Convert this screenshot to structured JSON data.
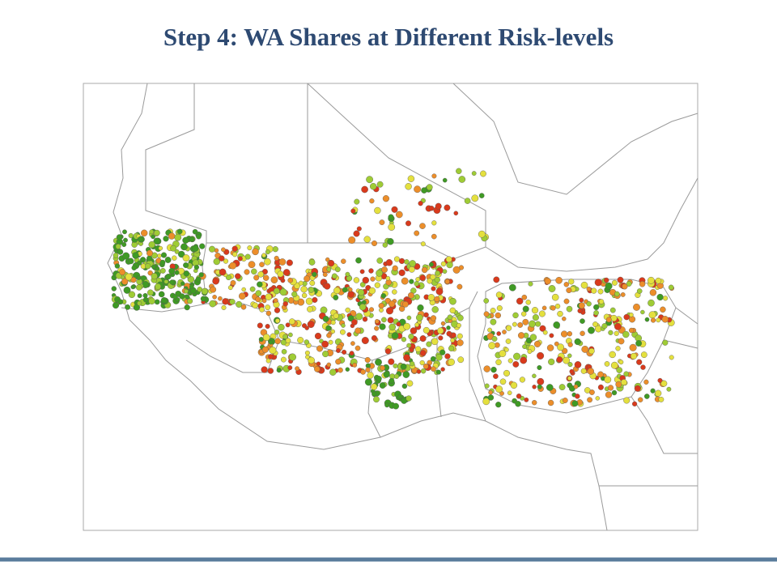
{
  "header": {
    "title": "Step 4: WA Shares at Different Risk-levels"
  }
}
